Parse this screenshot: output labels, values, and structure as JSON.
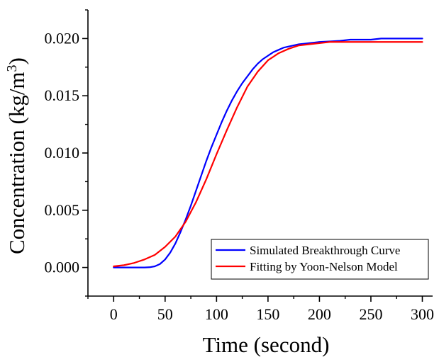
{
  "chart_data": {
    "type": "line",
    "title": "",
    "xlabel": "Time (second)",
    "ylabel_main": "Concentration (kg/m",
    "ylabel_sup": "3",
    "ylabel_close": ")",
    "xlim": [
      -25,
      310
    ],
    "ylim": [
      -0.0025,
      0.0225
    ],
    "xticks": [
      0,
      50,
      100,
      150,
      200,
      250,
      300
    ],
    "xtick_labels": [
      "0",
      "50",
      "100",
      "150",
      "200",
      "250",
      "300"
    ],
    "yticks": [
      0.0,
      0.005,
      0.01,
      0.015,
      0.02
    ],
    "ytick_labels": [
      "0.000",
      "0.005",
      "0.010",
      "0.015",
      "0.020"
    ],
    "grid": false,
    "legend_position": "bottom-right",
    "series": [
      {
        "name": "Simulated Breakthrough Curve",
        "color": "#0000ff",
        "x": [
          0,
          10,
          20,
          30,
          35,
          40,
          45,
          50,
          55,
          60,
          65,
          70,
          75,
          80,
          85,
          90,
          95,
          100,
          105,
          110,
          115,
          120,
          125,
          130,
          135,
          140,
          145,
          150,
          155,
          160,
          165,
          170,
          175,
          180,
          185,
          190,
          195,
          200,
          210,
          220,
          230,
          240,
          250,
          260,
          270,
          280,
          290,
          300
        ],
        "y": [
          0.0,
          0.0,
          0.0,
          0.0,
          2e-05,
          0.0001,
          0.0003,
          0.0007,
          0.0013,
          0.0021,
          0.0031,
          0.0042,
          0.0054,
          0.0067,
          0.008,
          0.0093,
          0.0105,
          0.0116,
          0.0127,
          0.0137,
          0.0146,
          0.0154,
          0.0161,
          0.0167,
          0.0173,
          0.0178,
          0.0182,
          0.0185,
          0.0188,
          0.019,
          0.0192,
          0.0193,
          0.0194,
          0.0195,
          0.01955,
          0.0196,
          0.01965,
          0.0197,
          0.01975,
          0.0198,
          0.0199,
          0.0199,
          0.0199,
          0.02,
          0.02,
          0.02,
          0.02,
          0.02
        ]
      },
      {
        "name": "Fitting by Yoon-Nelson Model",
        "color": "#ff0000",
        "x": [
          0,
          10,
          20,
          30,
          40,
          50,
          60,
          70,
          80,
          90,
          100,
          110,
          120,
          130,
          140,
          150,
          160,
          170,
          180,
          190,
          200,
          210,
          220,
          230,
          240,
          250,
          260,
          270,
          280,
          290,
          300
        ],
        "y": [
          0.0001,
          0.0002,
          0.0004,
          0.0007,
          0.0011,
          0.0018,
          0.0027,
          0.004,
          0.0057,
          0.0077,
          0.0099,
          0.012,
          0.014,
          0.0158,
          0.0171,
          0.0181,
          0.0187,
          0.0191,
          0.0194,
          0.0195,
          0.0196,
          0.0197,
          0.0197,
          0.0197,
          0.0197,
          0.0197,
          0.0197,
          0.0197,
          0.0197,
          0.0197,
          0.0197
        ]
      }
    ]
  }
}
